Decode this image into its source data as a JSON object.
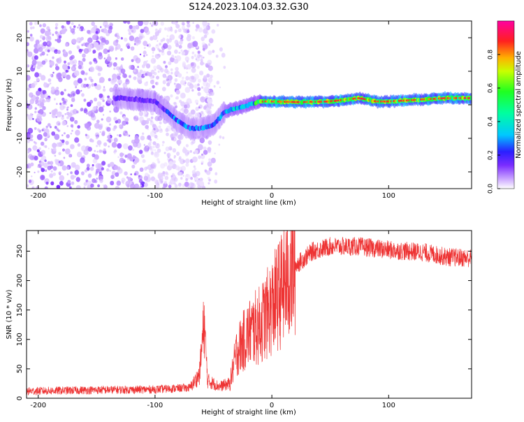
{
  "title": "S124.2023.104.03.32.G30",
  "colors": {
    "snr_line": "#ee3333",
    "axis": "#000000"
  },
  "chart_data": [
    {
      "type": "heatmap",
      "xlabel": "Height of straight line (km)",
      "ylabel": "Frequency (Hz)",
      "xlim": [
        -210,
        171
      ],
      "ylim": [
        -25,
        25
      ],
      "xticks": [
        -200,
        -100,
        0,
        100
      ],
      "yticks": [
        -20,
        -10,
        0,
        10,
        20
      ],
      "colorbar": {
        "label": "Normalized spectral amplitude",
        "range": [
          0,
          1
        ],
        "ticks": [
          0.0,
          0.2,
          0.4,
          0.6,
          0.8
        ],
        "colormap": "white-purple-blue-cyan-green-yellow-orange-red-magenta"
      },
      "ridge": {
        "description_points": [
          {
            "x": -130,
            "y": 2
          },
          {
            "x": -100,
            "y": 1
          },
          {
            "x": -90,
            "y": -2
          },
          {
            "x": -80,
            "y": -5
          },
          {
            "x": -70,
            "y": -7
          },
          {
            "x": -60,
            "y": -7
          },
          {
            "x": -50,
            "y": -6
          },
          {
            "x": -40,
            "y": -2
          },
          {
            "x": -30,
            "y": -1
          },
          {
            "x": -20,
            "y": 0
          },
          {
            "x": -10,
            "y": 1
          },
          {
            "x": 0,
            "y": 1
          },
          {
            "x": 25,
            "y": 0.8
          },
          {
            "x": 50,
            "y": 1
          },
          {
            "x": 75,
            "y": 2
          },
          {
            "x": 90,
            "y": 1
          },
          {
            "x": 100,
            "y": 1
          },
          {
            "x": 125,
            "y": 1.5
          },
          {
            "x": 150,
            "y": 2
          },
          {
            "x": 171,
            "y": 2
          }
        ]
      }
    },
    {
      "type": "line",
      "xlabel": "Height of straight line (km)",
      "ylabel": "SNR (10 * v/v)",
      "xlim": [
        -210,
        171
      ],
      "ylim": [
        0,
        285
      ],
      "xticks": [
        -200,
        -100,
        0,
        100
      ],
      "yticks": [
        0,
        50,
        100,
        150,
        200,
        250
      ],
      "envelope": [
        {
          "x": -210,
          "y": 12
        },
        {
          "x": -150,
          "y": 14
        },
        {
          "x": -100,
          "y": 15
        },
        {
          "x": -70,
          "y": 18
        },
        {
          "x": -62,
          "y": 40
        },
        {
          "x": -58,
          "y": 130
        },
        {
          "x": -55,
          "y": 30
        },
        {
          "x": -45,
          "y": 20
        },
        {
          "x": -36,
          "y": 25
        },
        {
          "x": -30,
          "y": 80
        },
        {
          "x": -20,
          "y": 110
        },
        {
          "x": -10,
          "y": 125
        },
        {
          "x": 0,
          "y": 155
        },
        {
          "x": 10,
          "y": 190
        },
        {
          "x": 20,
          "y": 225
        },
        {
          "x": 35,
          "y": 250
        },
        {
          "x": 50,
          "y": 258
        },
        {
          "x": 75,
          "y": 258
        },
        {
          "x": 100,
          "y": 252
        },
        {
          "x": 130,
          "y": 248
        },
        {
          "x": 150,
          "y": 240
        },
        {
          "x": 171,
          "y": 238
        }
      ]
    }
  ]
}
